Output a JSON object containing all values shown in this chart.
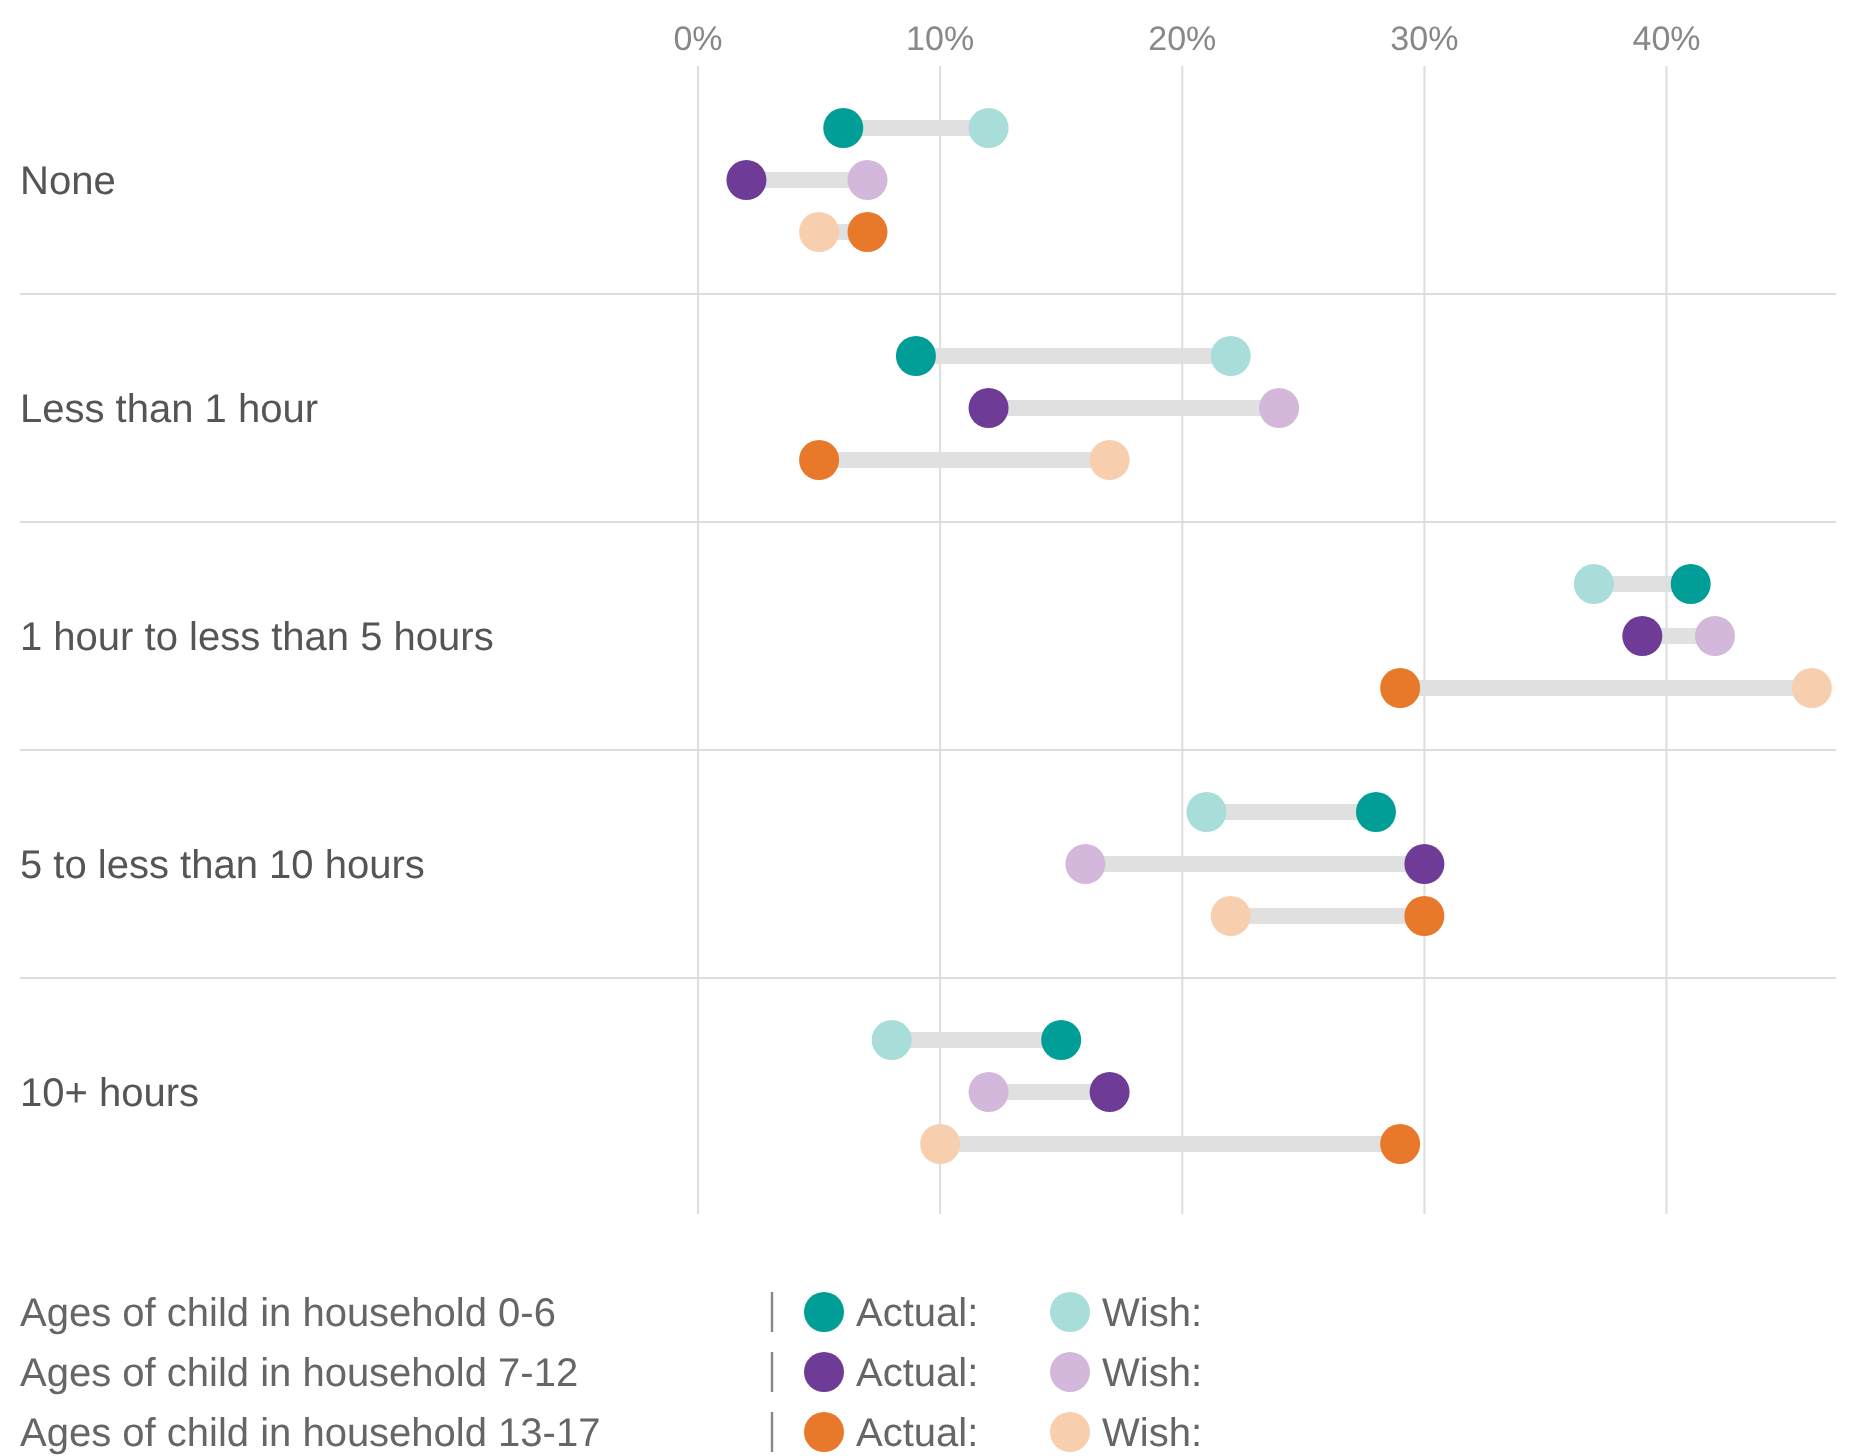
{
  "chart_data": {
    "type": "scatter",
    "orientation": "horizontal",
    "categories": [
      "None",
      "Less than 1 hour",
      "1 hour to less than 5 hours",
      "5 to less than 10 hours",
      "10+ hours"
    ],
    "series": [
      {
        "name": "Actual:",
        "color": "#009e96",
        "values": [
          6,
          9,
          41,
          28,
          15
        ]
      },
      {
        "name": "Wish:",
        "color": "#a8ddd9",
        "values": [
          12,
          22,
          37,
          21,
          8
        ]
      },
      {
        "name": "Actual:",
        "color": "#6e3b96",
        "values": [
          2,
          12,
          39,
          30,
          17
        ]
      },
      {
        "name": "Wish:",
        "color": "#d4b8db",
        "values": [
          7,
          24,
          42,
          16,
          12
        ]
      },
      {
        "name": "Actual:",
        "color": "#e8782a",
        "values": [
          7,
          5,
          29,
          30,
          29
        ]
      },
      {
        "name": "Wish:",
        "color": "#f7cfae",
        "values": [
          5,
          17,
          46,
          22,
          10
        ]
      }
    ],
    "annotations": [
      "Ages of child in household 0-6",
      "Ages of child in household 7-12",
      "Ages of child in household 13-17"
    ],
    "xlim": [
      0,
      47
    ],
    "xticks": [
      {
        "value": 0,
        "label": "0%"
      },
      {
        "value": 10,
        "label": "10%"
      },
      {
        "value": 20,
        "label": "20%"
      },
      {
        "value": 30,
        "label": "30%"
      },
      {
        "value": 40,
        "label": "40%"
      }
    ],
    "grid": "x",
    "legend": "bottom",
    "marker": "circle"
  }
}
